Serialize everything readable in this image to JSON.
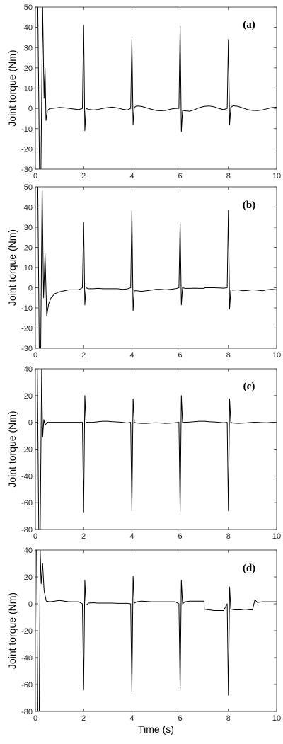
{
  "figure": {
    "xlabel": "Time (s)",
    "line_color": "#000000",
    "frame_color": "#262626"
  },
  "chart_data": [
    {
      "type": "line",
      "label": "(a)",
      "ylabel": "Joint torque (Nm)",
      "xlim": [
        0,
        10
      ],
      "ylim": [
        -30,
        50
      ],
      "xticks": [
        0,
        2,
        4,
        6,
        8,
        10
      ],
      "yticks": [
        -30,
        -20,
        -10,
        0,
        10,
        20,
        30,
        40,
        50
      ],
      "series": [
        {
          "x": [
            0,
            0.1,
            0.17,
            0.23,
            0.3,
            0.36,
            0.4,
            0.44,
            0.5,
            0.6,
            0.7,
            0.85,
            1.0,
            1.2,
            1.4,
            1.6,
            1.8,
            1.95,
            2.0,
            2.05,
            2.1,
            2.2,
            2.4,
            2.6,
            2.8,
            3.0,
            3.2,
            3.4,
            3.6,
            3.8,
            3.95,
            4.0,
            4.05,
            4.1,
            4.2,
            4.4,
            4.6,
            4.8,
            5.0,
            5.2,
            5.4,
            5.6,
            5.8,
            5.95,
            6.0,
            6.05,
            6.1,
            6.2,
            6.4,
            6.6,
            6.8,
            7.0,
            7.2,
            7.4,
            7.6,
            7.8,
            7.95,
            8.0,
            8.05,
            8.1,
            8.2,
            8.4,
            8.6,
            8.8,
            9.0,
            9.2,
            9.4,
            9.6,
            9.8,
            10.0
          ],
          "y": [
            50,
            50,
            -30,
            -30,
            50,
            5,
            20,
            -6,
            -1,
            0,
            0,
            0.2,
            0.5,
            0.3,
            0,
            -0.3,
            -0.6,
            0,
            41,
            -11,
            0,
            -0.5,
            -0.8,
            -0.5,
            0,
            0.4,
            0.6,
            0.2,
            -0.4,
            -0.8,
            0,
            34,
            -8,
            0.5,
            1.2,
            1.0,
            0.3,
            -0.4,
            -1.0,
            -1.2,
            -1.0,
            -0.4,
            0,
            0,
            40.5,
            -11.5,
            -1,
            -1.2,
            -1.4,
            -0.6,
            0.4,
            1.0,
            1.2,
            0.8,
            0,
            -0.6,
            0,
            34,
            -8,
            0.5,
            1.3,
            1.0,
            0.2,
            -0.6,
            -1.0,
            -1.1,
            -0.8,
            -0.2,
            0.4,
            0.6
          ]
        }
      ]
    },
    {
      "type": "line",
      "label": "(b)",
      "ylabel": "Joint torque (Nm)",
      "xlim": [
        0,
        10
      ],
      "ylim": [
        -30,
        50
      ],
      "xticks": [
        0,
        2,
        4,
        6,
        8,
        10
      ],
      "yticks": [
        -30,
        -20,
        -10,
        0,
        10,
        20,
        30,
        40,
        50
      ],
      "series": [
        {
          "x": [
            0,
            0.1,
            0.16,
            0.22,
            0.28,
            0.34,
            0.4,
            0.47,
            0.55,
            0.65,
            0.8,
            1.0,
            1.2,
            1.4,
            1.6,
            1.8,
            1.95,
            2.0,
            2.05,
            2.1,
            2.2,
            2.4,
            2.6,
            2.8,
            3.0,
            3.2,
            3.4,
            3.6,
            3.8,
            3.95,
            4.0,
            4.05,
            4.1,
            4.2,
            4.4,
            4.6,
            4.8,
            5.0,
            5.2,
            5.4,
            5.6,
            5.8,
            5.95,
            6.0,
            6.05,
            6.1,
            6.2,
            6.4,
            6.6,
            6.8,
            7.0,
            7.01,
            7.2,
            7.4,
            7.6,
            7.8,
            7.95,
            8.0,
            8.05,
            8.1,
            8.2,
            8.4,
            8.6,
            8.8,
            9.0,
            9.2,
            9.4,
            9.6,
            9.8,
            10.0
          ],
          "y": [
            50,
            50,
            -30,
            -30,
            50,
            -5,
            17,
            -14,
            -8,
            -5,
            -3,
            -2,
            -1.5,
            -1,
            -1,
            -1,
            0,
            32.5,
            -8.5,
            0,
            -0.5,
            -0.5,
            -0.3,
            -0.5,
            -0.5,
            -0.5,
            -0.5,
            -0.8,
            -0.6,
            0,
            38.5,
            -11.5,
            -1.5,
            -1.5,
            -1.8,
            -1.5,
            -1.2,
            -0.8,
            -0.8,
            -1.0,
            -0.8,
            -0.5,
            0,
            32.5,
            -8.5,
            0,
            -0.3,
            -0.3,
            -0.2,
            -0.3,
            -0.3,
            0,
            0,
            0,
            -0.1,
            -0.2,
            0,
            38.5,
            -10.5,
            -1,
            -1.2,
            -1.0,
            -1.5,
            -1.3,
            -1.0,
            -1.2,
            -1.5,
            -1.0,
            -0.8,
            -1.0
          ]
        }
      ]
    },
    {
      "type": "line",
      "label": "(c)",
      "ylabel": "Joint torque (Nm)",
      "xlim": [
        0,
        10
      ],
      "ylim": [
        -80,
        40
      ],
      "xticks": [
        0,
        2,
        4,
        6,
        8,
        10
      ],
      "yticks": [
        -80,
        -60,
        -40,
        -20,
        0,
        20,
        40
      ],
      "series": [
        {
          "x": [
            0,
            0.08,
            0.14,
            0.2,
            0.26,
            0.3,
            0.35,
            0.4,
            0.5,
            0.6,
            0.8,
            1.0,
            1.2,
            1.4,
            1.6,
            1.8,
            1.95,
            2.0,
            2.05,
            2.1,
            2.2,
            2.4,
            2.6,
            2.8,
            3.0,
            3.2,
            3.4,
            3.6,
            3.8,
            3.95,
            4.0,
            4.05,
            4.1,
            4.2,
            4.4,
            4.6,
            4.8,
            5.0,
            5.2,
            5.4,
            5.6,
            5.8,
            5.95,
            6.0,
            6.05,
            6.1,
            6.2,
            6.4,
            6.6,
            6.8,
            7.0,
            7.2,
            7.4,
            7.6,
            7.8,
            7.95,
            8.0,
            8.05,
            8.1,
            8.2,
            8.4,
            8.6,
            8.8,
            9.0,
            9.2,
            9.4,
            9.6,
            9.8,
            10.0
          ],
          "y": [
            40,
            40,
            -80,
            -80,
            40,
            -11,
            2,
            -2,
            0,
            0,
            0,
            0,
            0,
            0,
            0,
            0,
            0,
            -67,
            20,
            0,
            0,
            0,
            0.5,
            0.8,
            0.8,
            0.5,
            0.3,
            0,
            -0.5,
            0,
            -66,
            17.5,
            0,
            -0.5,
            -0.8,
            -0.8,
            -0.5,
            -0.3,
            -0.5,
            -0.8,
            -0.6,
            -0.3,
            0,
            -67,
            20,
            0,
            0,
            0.2,
            0.5,
            0.8,
            0.8,
            0.5,
            0.3,
            0,
            -0.3,
            0,
            -66,
            17.5,
            0,
            -0.5,
            -0.8,
            -0.6,
            -0.3,
            0,
            0,
            -0.2,
            -0.3,
            0,
            0
          ]
        }
      ]
    },
    {
      "type": "line",
      "label": "(d)",
      "ylabel": "Joint torque (Nm)",
      "xlabel": "Time (s)",
      "xlim": [
        0,
        10
      ],
      "ylim": [
        -80,
        40
      ],
      "xticks": [
        0,
        2,
        4,
        6,
        8,
        10
      ],
      "yticks": [
        -80,
        -60,
        -40,
        -20,
        0,
        20,
        40
      ],
      "series": [
        {
          "x": [
            0,
            0.05,
            0.1,
            0.16,
            0.2,
            0.24,
            0.3,
            0.36,
            0.45,
            0.6,
            0.8,
            1.0,
            1.2,
            1.4,
            1.6,
            1.8,
            1.95,
            2.0,
            2.05,
            2.1,
            2.2,
            2.4,
            2.6,
            2.8,
            3.0,
            3.2,
            3.4,
            3.6,
            3.8,
            3.95,
            4.0,
            4.05,
            4.1,
            4.2,
            4.4,
            4.6,
            4.8,
            5.0,
            5.2,
            5.4,
            5.6,
            5.8,
            5.95,
            6.0,
            6.05,
            6.1,
            6.2,
            6.4,
            6.6,
            6.8,
            6.99,
            7.0,
            7.2,
            7.4,
            7.6,
            7.8,
            7.95,
            8.0,
            8.05,
            8.1,
            8.3,
            8.5,
            8.7,
            8.9,
            9.0,
            9.1,
            9.2,
            9.4,
            9.6,
            9.8,
            10.0
          ],
          "y": [
            40,
            40,
            -80,
            -80,
            40,
            15,
            30,
            10,
            2,
            1.5,
            2,
            2.5,
            2,
            1.5,
            1.5,
            1.5,
            0,
            -64,
            17.5,
            -1,
            0.5,
            0.8,
            0.5,
            0.5,
            0.5,
            0.5,
            0.3,
            0.3,
            0.3,
            0,
            -65,
            20.5,
            0.5,
            1.5,
            2,
            1.8,
            1.5,
            1.5,
            1.5,
            1.5,
            1.5,
            1.5,
            0,
            -64,
            17.5,
            0,
            1.5,
            2,
            2,
            2,
            2,
            -4,
            -4.5,
            -5,
            -5,
            -5,
            0,
            -68,
            12.5,
            -4,
            -4.5,
            -4.5,
            -4,
            -4.5,
            -4.5,
            3,
            1,
            1.5,
            1.5,
            1.5,
            1.5
          ]
        }
      ]
    }
  ]
}
